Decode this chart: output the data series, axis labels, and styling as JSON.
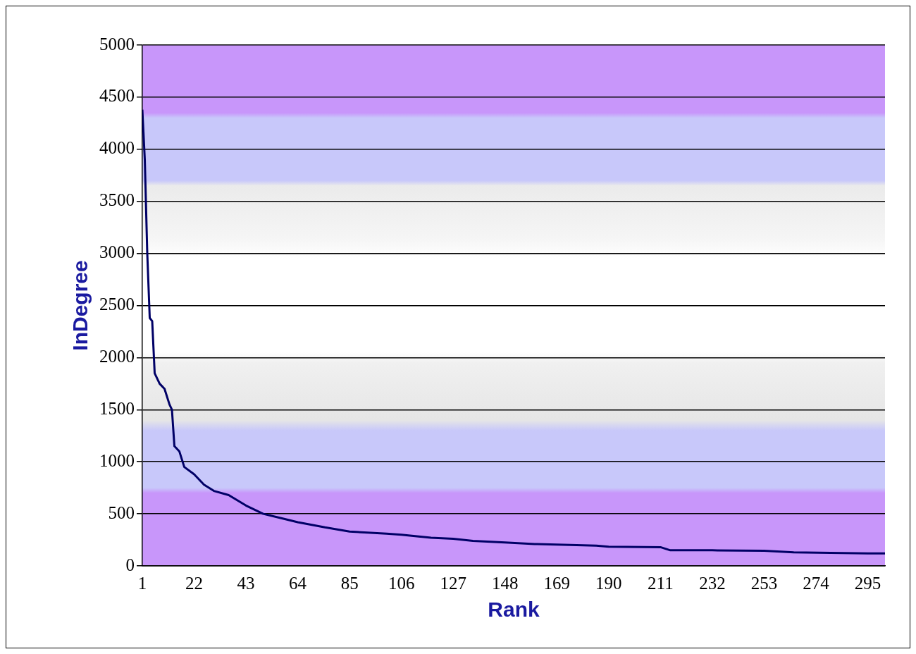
{
  "chart_data": {
    "type": "line",
    "xlabel": "Rank",
    "ylabel": "InDegree",
    "x": [
      1,
      2,
      3,
      4,
      5,
      6,
      8,
      10,
      12,
      13,
      14,
      16,
      18,
      22,
      26,
      30,
      36,
      43,
      50,
      57,
      64,
      75,
      85,
      100,
      106,
      118,
      127,
      135,
      148,
      160,
      169,
      185,
      190,
      211,
      215,
      232,
      253,
      265,
      280,
      295,
      302
    ],
    "series": [
      {
        "color": "#000066",
        "values": [
          4380,
          3900,
          3000,
          2380,
          2350,
          1850,
          1750,
          1700,
          1550,
          1500,
          1150,
          1100,
          950,
          880,
          780,
          720,
          680,
          580,
          500,
          460,
          420,
          370,
          330,
          310,
          300,
          270,
          260,
          240,
          225,
          210,
          205,
          195,
          185,
          180,
          150,
          150,
          145,
          130,
          125,
          120,
          120
        ]
      }
    ],
    "xlim": [
      1,
      302
    ],
    "xticks": [
      1,
      22,
      43,
      64,
      85,
      106,
      127,
      148,
      169,
      190,
      211,
      232,
      253,
      274,
      295
    ],
    "ylim": [
      0,
      5000
    ],
    "yticks": [
      0,
      500,
      1000,
      1500,
      2000,
      2500,
      3000,
      3500,
      4000,
      4500,
      5000
    ],
    "grid": "y",
    "legend": false,
    "marker": "none",
    "line_style": "solid"
  }
}
